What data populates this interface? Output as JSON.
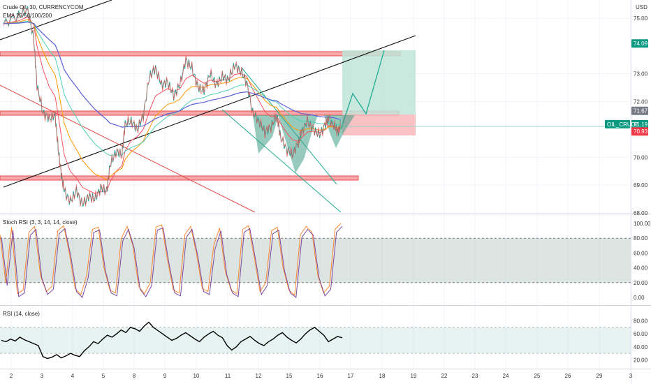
{
  "header": {
    "symbol_title": "Crude Oil, 30, CURRENCYCOM",
    "indicator": "EMA 20/50/100/200",
    "currency": "USD"
  },
  "chart_data": [
    {
      "type": "line",
      "panel": "price",
      "ylim": [
        68.0,
        75.4
      ],
      "y_ticks": [
        "75.00",
        "73.00",
        "72.00",
        "70.00",
        "69.00",
        "68.00"
      ],
      "x_ticks": [
        "2",
        "3",
        "4",
        "5",
        "8",
        "9",
        "10",
        "11",
        "12",
        "15",
        "16",
        "17",
        "18",
        "19",
        "22",
        "23",
        "24",
        "25",
        "26",
        "29",
        "3"
      ],
      "price_labels": [
        {
          "id": "target",
          "text": "74.09",
          "value": 74.09,
          "color": "#089981"
        },
        {
          "id": "level",
          "text": "71.67",
          "value": 71.67,
          "color": "#787b86"
        },
        {
          "id": "current",
          "text": "71.19",
          "value": 71.19,
          "color": "#089981"
        },
        {
          "id": "stop",
          "text": "70.93",
          "value": 70.93,
          "color": "#f23645"
        }
      ],
      "symbol_tag": "OIL_CRUDE",
      "close_series": [
        [
          0,
          74.8
        ],
        [
          0.5,
          75.1
        ],
        [
          0.8,
          75.3
        ],
        [
          1.0,
          74.2
        ],
        [
          1.1,
          72.6
        ],
        [
          1.3,
          71.6
        ],
        [
          1.5,
          71.4
        ],
        [
          1.7,
          71.5
        ],
        [
          1.8,
          70.3
        ],
        [
          1.9,
          69.4
        ],
        [
          2.0,
          68.8
        ],
        [
          2.2,
          68.4
        ],
        [
          2.4,
          68.8
        ],
        [
          2.6,
          68.3
        ],
        [
          2.8,
          68.6
        ],
        [
          3.0,
          68.5
        ],
        [
          3.2,
          68.9
        ],
        [
          3.4,
          68.8
        ],
        [
          3.5,
          69.7
        ],
        [
          3.7,
          70.2
        ],
        [
          3.9,
          70.1
        ],
        [
          4.0,
          71.2
        ],
        [
          4.2,
          71.3
        ],
        [
          4.4,
          71.0
        ],
        [
          4.6,
          71.5
        ],
        [
          4.8,
          72.9
        ],
        [
          5.0,
          73.2
        ],
        [
          5.2,
          72.6
        ],
        [
          5.4,
          72.7
        ],
        [
          5.6,
          72.2
        ],
        [
          5.8,
          72.6
        ],
        [
          6.0,
          73.5
        ],
        [
          6.2,
          73.2
        ],
        [
          6.4,
          72.5
        ],
        [
          6.6,
          72.4
        ],
        [
          6.8,
          73.0
        ],
        [
          7.0,
          72.6
        ],
        [
          7.2,
          72.9
        ],
        [
          7.4,
          72.8
        ],
        [
          7.6,
          73.3
        ],
        [
          7.8,
          73.1
        ],
        [
          8.0,
          72.7
        ],
        [
          8.2,
          71.6
        ],
        [
          8.4,
          71.3
        ],
        [
          8.6,
          70.9
        ],
        [
          8.8,
          71.1
        ],
        [
          9.0,
          71.5
        ],
        [
          9.1,
          70.8
        ],
        [
          9.3,
          70.3
        ],
        [
          9.5,
          70.1
        ],
        [
          9.7,
          70.5
        ],
        [
          9.8,
          70.9
        ],
        [
          10.0,
          71.3
        ],
        [
          10.2,
          71.0
        ],
        [
          10.4,
          70.8
        ],
        [
          10.6,
          71.2
        ],
        [
          10.7,
          71.4
        ],
        [
          10.9,
          71.1
        ],
        [
          11.0,
          70.9
        ],
        [
          11.1,
          71.2
        ]
      ],
      "ema_series": [
        {
          "name": "EMA 20",
          "color": "#f7525f"
        },
        {
          "name": "EMA 50",
          "color": "#ff9800"
        },
        {
          "name": "EMA 100",
          "color": "#4dd0b4"
        },
        {
          "name": "EMA 200",
          "color": "#5b5fd6"
        }
      ]
    },
    {
      "type": "line",
      "panel": "oscillator",
      "title": "Stoch RSI (3, 3, 14, 14, close)",
      "ylim": [
        0,
        100
      ],
      "y_ticks": [
        "100.00",
        "80.00",
        "60.00",
        "40.00",
        "20.00",
        "0.00"
      ],
      "band": [
        20,
        80
      ],
      "series": [
        {
          "name": "K",
          "color": "#2962ff"
        },
        {
          "name": "D",
          "color": "#ff6d00"
        }
      ],
      "k_values": [
        85,
        20,
        95,
        5,
        10,
        88,
        96,
        30,
        8,
        15,
        90,
        97,
        60,
        12,
        4,
        30,
        92,
        95,
        40,
        10,
        6,
        80,
        96,
        70,
        15,
        5,
        20,
        95,
        98,
        50,
        10,
        6,
        85,
        96,
        60,
        12,
        8,
        70,
        94,
        35,
        10,
        5,
        92,
        97,
        55,
        8,
        20,
        90,
        95,
        40,
        10,
        3,
        85,
        96,
        88,
        30,
        6,
        15,
        92,
        100
      ]
    },
    {
      "type": "line",
      "panel": "oscillator",
      "title": "RSI (14, close)",
      "ylim": [
        15,
        85
      ],
      "y_ticks": [
        "80.00",
        "60.00",
        "40.00",
        "20.00"
      ],
      "band": [
        30,
        70
      ],
      "series": [
        {
          "name": "RSI",
          "color": "#000000"
        }
      ],
      "values": [
        50,
        48,
        52,
        49,
        55,
        51,
        48,
        45,
        42,
        25,
        22,
        24,
        28,
        23,
        26,
        30,
        27,
        25,
        34,
        40,
        48,
        45,
        52,
        58,
        55,
        60,
        66,
        62,
        70,
        68,
        64,
        72,
        78,
        70,
        65,
        60,
        55,
        50,
        53,
        58,
        62,
        57,
        52,
        48,
        55,
        60,
        64,
        58,
        54,
        42,
        35,
        40,
        48,
        52,
        56,
        50,
        45,
        42,
        48,
        52,
        58,
        62,
        55,
        50,
        46,
        52,
        60,
        66,
        70,
        64,
        58,
        48,
        52,
        56,
        54
      ]
    }
  ]
}
